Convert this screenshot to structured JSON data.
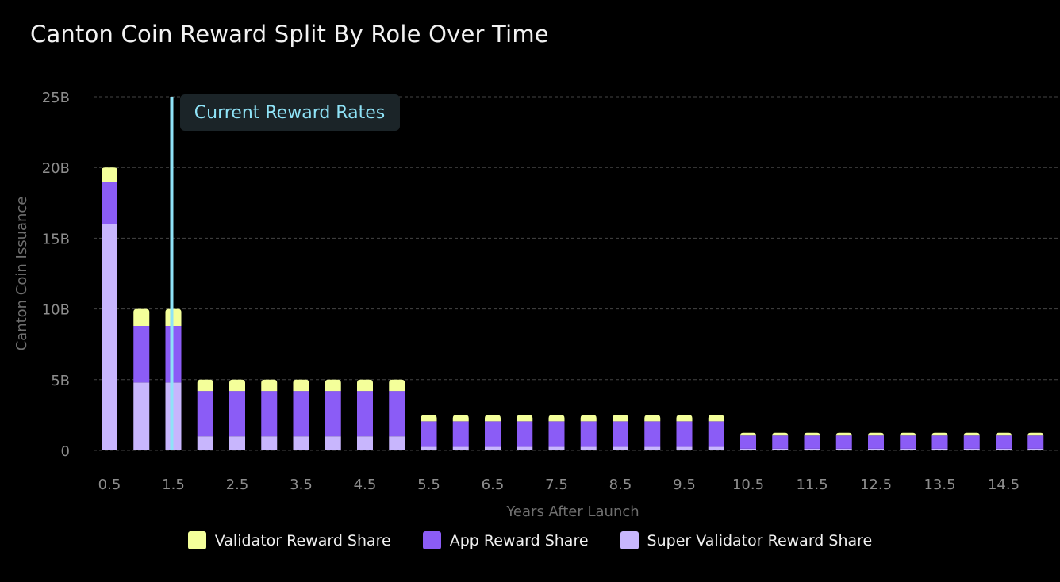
{
  "chart_data": {
    "type": "bar",
    "stacked": true,
    "title": "Canton Coin Reward Split By Role Over Time",
    "xlabel": "Years After Launch",
    "ylabel": "Canton Coin Issuance",
    "ylim": [
      0,
      25
    ],
    "y_unit": "B",
    "y_ticks": [
      "0",
      "5B",
      "10B",
      "15B",
      "20B",
      "25B"
    ],
    "y_tick_values": [
      0,
      5,
      10,
      15,
      20,
      25
    ],
    "grid": "horizontal-dashed",
    "legend_position": "bottom-center",
    "x": [
      0.5,
      1,
      1.5,
      2,
      2.5,
      3,
      3.5,
      4,
      4.5,
      5,
      5.5,
      6,
      6.5,
      7,
      7.5,
      8,
      8.5,
      9,
      9.5,
      10,
      10.5,
      11,
      11.5,
      12,
      12.5,
      13,
      13.5,
      14,
      14.5,
      15
    ],
    "x_tick_labels": [
      "0.5",
      "1.5",
      "2.5",
      "3.5",
      "4.5",
      "5.5",
      "6.5",
      "7.5",
      "8.5",
      "9.5",
      "10.5",
      "11.5",
      "12.5",
      "13.5",
      "14.5"
    ],
    "x_tick_values": [
      0.5,
      1.5,
      2.5,
      3.5,
      4.5,
      5.5,
      6.5,
      7.5,
      8.5,
      9.5,
      10.5,
      11.5,
      12.5,
      13.5,
      14.5
    ],
    "series": [
      {
        "name": "Super Validator Reward Share",
        "color": "#c8b6fd",
        "values": [
          16,
          4.8,
          4.8,
          1,
          1,
          1,
          1,
          1,
          1,
          1,
          0.25,
          0.25,
          0.25,
          0.25,
          0.25,
          0.25,
          0.25,
          0.25,
          0.25,
          0.25,
          0.12,
          0.12,
          0.12,
          0.12,
          0.12,
          0.12,
          0.12,
          0.12,
          0.12,
          0.12
        ]
      },
      {
        "name": "App Reward Share",
        "color": "#8b5cf6",
        "values": [
          3,
          4,
          4,
          3.2,
          3.2,
          3.2,
          3.2,
          3.2,
          3.2,
          3.2,
          1.8,
          1.8,
          1.8,
          1.8,
          1.8,
          1.8,
          1.8,
          1.8,
          1.8,
          1.8,
          0.93,
          0.93,
          0.93,
          0.93,
          0.93,
          0.93,
          0.93,
          0.93,
          0.93,
          0.93
        ]
      },
      {
        "name": "Validator Reward Share",
        "color": "#f4ff9a",
        "values": [
          1,
          1.2,
          1.2,
          0.8,
          0.8,
          0.8,
          0.8,
          0.8,
          0.8,
          0.8,
          0.45,
          0.45,
          0.45,
          0.45,
          0.45,
          0.45,
          0.45,
          0.45,
          0.45,
          0.45,
          0.2,
          0.2,
          0.2,
          0.2,
          0.2,
          0.2,
          0.2,
          0.2,
          0.2,
          0.2
        ]
      }
    ],
    "legend_order": [
      "Validator Reward Share",
      "App Reward Share",
      "Super Validator Reward Share"
    ],
    "annotation": {
      "label": "Current Reward Rates",
      "x": 1.5,
      "color": "#8fe3f7"
    }
  }
}
